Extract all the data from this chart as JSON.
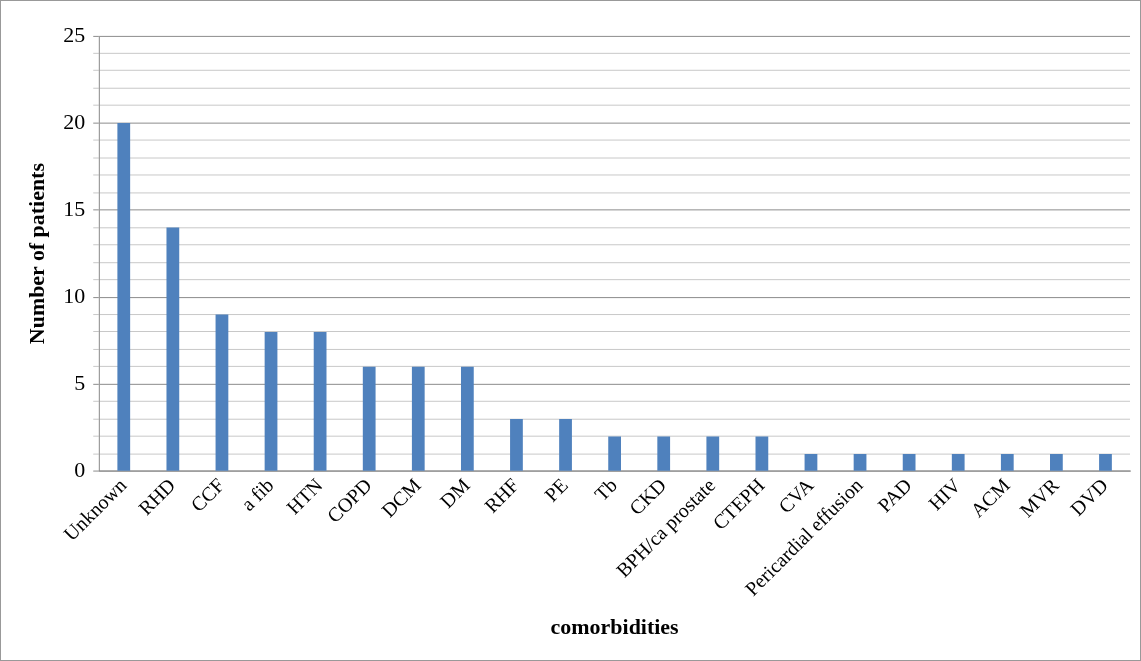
{
  "chart_data": {
    "type": "bar",
    "xlabel": "comorbidities",
    "ylabel": "Number of patients",
    "categories": [
      "Unknown",
      "RHD",
      "CCF",
      "a fib",
      "HTN",
      "COPD",
      "DCM",
      "DM",
      "RHF",
      "PE",
      "Tb",
      "CKD",
      "BPH/ca prostate",
      "CTEPH",
      "CVA",
      "Pericardial effusion",
      "PAD",
      "HIV",
      "ACM",
      "MVR",
      "DVD"
    ],
    "values": [
      20,
      14,
      9,
      8,
      8,
      6,
      6,
      6,
      3,
      3,
      2,
      2,
      2,
      2,
      1,
      1,
      1,
      1,
      1,
      1,
      1
    ],
    "color": "#4f81bd",
    "ylim": [
      0,
      25
    ],
    "yticks": [
      0,
      {
        "value": 1,
        "label": null
      },
      {
        "value": 2,
        "label": null
      },
      {
        "value": 3,
        "label": null
      },
      {
        "value": 4,
        "label": null
      },
      5,
      {
        "value": 6,
        "label": null
      },
      {
        "value": 7,
        "label": null
      },
      {
        "value": 8,
        "label": null
      },
      {
        "value": 9,
        "label": null
      },
      10,
      {
        "value": 11,
        "label": null
      },
      {
        "value": 12,
        "label": null
      },
      {
        "value": 13,
        "label": null
      },
      {
        "value": 14,
        "label": null
      },
      15,
      {
        "value": 16,
        "label": null
      },
      {
        "value": 17,
        "label": null
      },
      {
        "value": 18,
        "label": null
      },
      {
        "value": 19,
        "label": null
      },
      20,
      {
        "value": 21,
        "label": null
      },
      {
        "value": 22,
        "label": null
      },
      {
        "value": 23,
        "label": null
      },
      {
        "value": 24,
        "label": null
      },
      25
    ],
    "grid": "y",
    "legend": false
  }
}
